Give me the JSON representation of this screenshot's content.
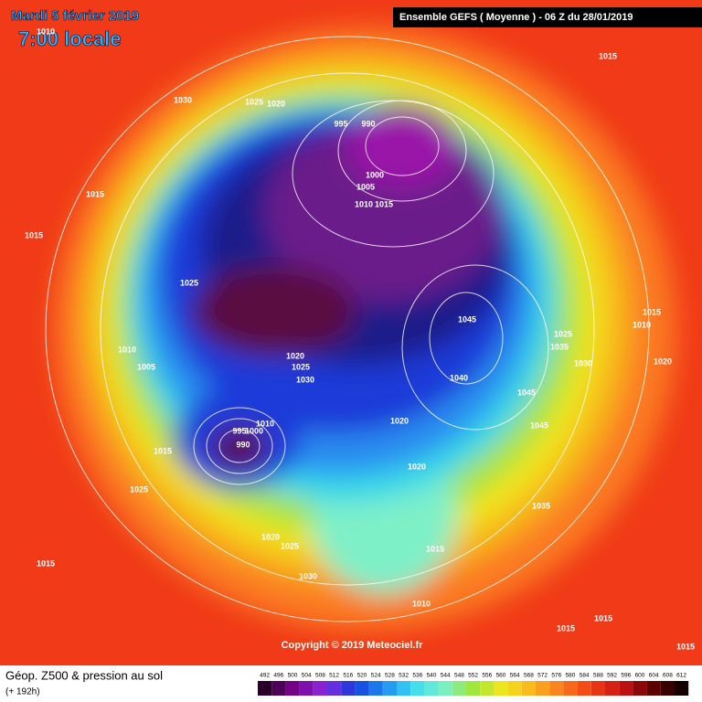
{
  "header": {
    "date": "Mardi 5 février 2019",
    "time": "7:00 locale",
    "run": "Ensemble GEFS  ( Moyenne )  -  06 Z du 28/01/2019"
  },
  "copyright": "Copyright © 2019 Meteociel.fr",
  "footer": {
    "title": "Géop. Z500 & pression au sol",
    "lead": "(+ 192h)"
  },
  "isobar_labels": [
    1010,
    1015,
    1030,
    1025,
    1020,
    995,
    990,
    1000,
    1005,
    1010,
    1015,
    1015,
    1015,
    1025,
    1045,
    1015,
    1010,
    1025,
    1035,
    1030,
    1020,
    1010,
    1005,
    1020,
    1025,
    1030,
    1040,
    1045,
    1045,
    1020,
    995,
    1000,
    1010,
    990,
    1015,
    1020,
    1025,
    1035,
    1020,
    1025,
    1015,
    1030,
    1015,
    1010,
    1015,
    1015,
    1015
  ],
  "legend": {
    "labels": [
      492,
      496,
      500,
      504,
      508,
      512,
      516,
      520,
      524,
      528,
      532,
      536,
      540,
      544,
      548,
      552,
      556,
      560,
      564,
      568,
      572,
      576,
      580,
      584,
      588,
      592,
      596,
      600,
      604,
      608,
      612
    ]
  }
}
